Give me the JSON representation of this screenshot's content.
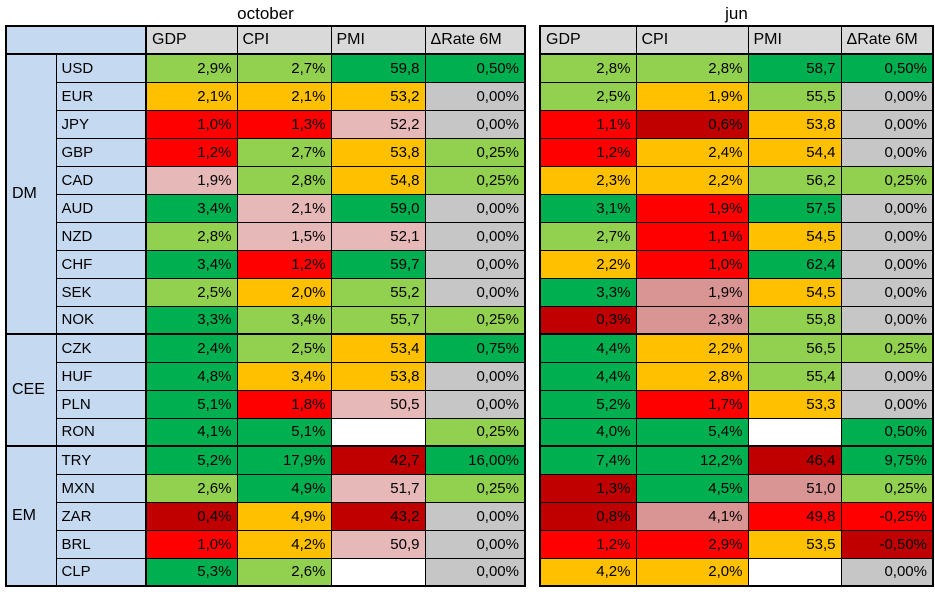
{
  "colors": {
    "dark_green": "#00B050",
    "light_green": "#92D050",
    "amber": "#FFC000",
    "red": "#FF0000",
    "dark_red": "#C00000",
    "pink": "#E6B8B7",
    "rose": "#D99594",
    "gray": "#C6C6C6",
    "header_gray": "#D9D9D9",
    "label_blue": "#C5D9F1",
    "blank": "#FFFFFF"
  },
  "tables": [
    {
      "title": "october",
      "has_row_labels": true,
      "columns": [
        "GDP",
        "CPI",
        "PMI",
        "ΔRate 6M"
      ],
      "groups": [
        {
          "label": "DM",
          "rows": [
            {
              "currency": "USD",
              "cells": [
                [
                  "2,9%",
                  "light_green"
                ],
                [
                  "2,7%",
                  "light_green"
                ],
                [
                  "59,8",
                  "dark_green"
                ],
                [
                  "0,50%",
                  "dark_green"
                ]
              ]
            },
            {
              "currency": "EUR",
              "cells": [
                [
                  "2,1%",
                  "amber"
                ],
                [
                  "2,1%",
                  "amber"
                ],
                [
                  "53,2",
                  "amber"
                ],
                [
                  "0,00%",
                  "gray"
                ]
              ]
            },
            {
              "currency": "JPY",
              "cells": [
                [
                  "1,0%",
                  "red"
                ],
                [
                  "1,3%",
                  "red"
                ],
                [
                  "52,2",
                  "pink"
                ],
                [
                  "0,00%",
                  "gray"
                ]
              ]
            },
            {
              "currency": "GBP",
              "cells": [
                [
                  "1,2%",
                  "red"
                ],
                [
                  "2,7%",
                  "light_green"
                ],
                [
                  "53,8",
                  "amber"
                ],
                [
                  "0,25%",
                  "light_green"
                ]
              ]
            },
            {
              "currency": "CAD",
              "cells": [
                [
                  "1,9%",
                  "pink"
                ],
                [
                  "2,8%",
                  "light_green"
                ],
                [
                  "54,8",
                  "amber"
                ],
                [
                  "0,25%",
                  "light_green"
                ]
              ]
            },
            {
              "currency": "AUD",
              "cells": [
                [
                  "3,4%",
                  "dark_green"
                ],
                [
                  "2,1%",
                  "pink"
                ],
                [
                  "59,0",
                  "dark_green"
                ],
                [
                  "0,00%",
                  "gray"
                ]
              ]
            },
            {
              "currency": "NZD",
              "cells": [
                [
                  "2,8%",
                  "light_green"
                ],
                [
                  "1,5%",
                  "pink"
                ],
                [
                  "52,1",
                  "pink"
                ],
                [
                  "0,00%",
                  "gray"
                ]
              ]
            },
            {
              "currency": "CHF",
              "cells": [
                [
                  "3,4%",
                  "dark_green"
                ],
                [
                  "1,2%",
                  "red"
                ],
                [
                  "59,7",
                  "dark_green"
                ],
                [
                  "0,00%",
                  "gray"
                ]
              ]
            },
            {
              "currency": "SEK",
              "cells": [
                [
                  "2,5%",
                  "light_green"
                ],
                [
                  "2,0%",
                  "amber"
                ],
                [
                  "55,2",
                  "light_green"
                ],
                [
                  "0,00%",
                  "gray"
                ]
              ]
            },
            {
              "currency": "NOK",
              "cells": [
                [
                  "3,3%",
                  "dark_green"
                ],
                [
                  "3,4%",
                  "light_green"
                ],
                [
                  "55,7",
                  "light_green"
                ],
                [
                  "0,25%",
                  "light_green"
                ]
              ]
            }
          ]
        },
        {
          "label": "CEE",
          "rows": [
            {
              "currency": "CZK",
              "cells": [
                [
                  "2,4%",
                  "dark_green"
                ],
                [
                  "2,5%",
                  "light_green"
                ],
                [
                  "53,4",
                  "amber"
                ],
                [
                  "0,75%",
                  "dark_green"
                ]
              ]
            },
            {
              "currency": "HUF",
              "cells": [
                [
                  "4,8%",
                  "dark_green"
                ],
                [
                  "3,4%",
                  "amber"
                ],
                [
                  "53,8",
                  "amber"
                ],
                [
                  "0,00%",
                  "gray"
                ]
              ]
            },
            {
              "currency": "PLN",
              "cells": [
                [
                  "5,1%",
                  "dark_green"
                ],
                [
                  "1,8%",
                  "red"
                ],
                [
                  "50,5",
                  "pink"
                ],
                [
                  "0,00%",
                  "gray"
                ]
              ]
            },
            {
              "currency": "RON",
              "cells": [
                [
                  "4,1%",
                  "dark_green"
                ],
                [
                  "5,1%",
                  "dark_green"
                ],
                [
                  "",
                  "blank"
                ],
                [
                  "0,25%",
                  "light_green"
                ]
              ]
            }
          ]
        },
        {
          "label": "EM",
          "rows": [
            {
              "currency": "TRY",
              "cells": [
                [
                  "5,2%",
                  "dark_green"
                ],
                [
                  "17,9%",
                  "dark_green"
                ],
                [
                  "42,7",
                  "dark_red"
                ],
                [
                  "16,00%",
                  "dark_green"
                ]
              ]
            },
            {
              "currency": "MXN",
              "cells": [
                [
                  "2,6%",
                  "light_green"
                ],
                [
                  "4,9%",
                  "dark_green"
                ],
                [
                  "51,7",
                  "pink"
                ],
                [
                  "0,25%",
                  "light_green"
                ]
              ]
            },
            {
              "currency": "ZAR",
              "cells": [
                [
                  "0,4%",
                  "dark_red"
                ],
                [
                  "4,9%",
                  "amber"
                ],
                [
                  "43,2",
                  "dark_red"
                ],
                [
                  "0,00%",
                  "gray"
                ]
              ]
            },
            {
              "currency": "BRL",
              "cells": [
                [
                  "1,0%",
                  "red"
                ],
                [
                  "4,2%",
                  "amber"
                ],
                [
                  "50,9",
                  "pink"
                ],
                [
                  "0,00%",
                  "gray"
                ]
              ]
            },
            {
              "currency": "CLP",
              "cells": [
                [
                  "5,3%",
                  "dark_green"
                ],
                [
                  "2,6%",
                  "light_green"
                ],
                [
                  "",
                  "blank"
                ],
                [
                  "0,00%",
                  "gray"
                ]
              ]
            }
          ]
        }
      ]
    },
    {
      "title": "jun",
      "has_row_labels": false,
      "columns": [
        "GDP",
        "CPI",
        "PMI",
        "ΔRate 6M"
      ],
      "groups": [
        {
          "label": "DM",
          "rows": [
            {
              "cells": [
                [
                  "2,8%",
                  "light_green"
                ],
                [
                  "2,8%",
                  "light_green"
                ],
                [
                  "58,7",
                  "dark_green"
                ],
                [
                  "0,50%",
                  "dark_green"
                ]
              ]
            },
            {
              "cells": [
                [
                  "2,5%",
                  "light_green"
                ],
                [
                  "1,9%",
                  "amber"
                ],
                [
                  "55,5",
                  "light_green"
                ],
                [
                  "0,00%",
                  "gray"
                ]
              ]
            },
            {
              "cells": [
                [
                  "1,1%",
                  "red"
                ],
                [
                  "0,6%",
                  "dark_red"
                ],
                [
                  "53,8",
                  "amber"
                ],
                [
                  "0,00%",
                  "gray"
                ]
              ]
            },
            {
              "cells": [
                [
                  "1,2%",
                  "red"
                ],
                [
                  "2,4%",
                  "amber"
                ],
                [
                  "54,4",
                  "amber"
                ],
                [
                  "0,00%",
                  "gray"
                ]
              ]
            },
            {
              "cells": [
                [
                  "2,3%",
                  "amber"
                ],
                [
                  "2,2%",
                  "amber"
                ],
                [
                  "56,2",
                  "light_green"
                ],
                [
                  "0,25%",
                  "light_green"
                ]
              ]
            },
            {
              "cells": [
                [
                  "3,1%",
                  "dark_green"
                ],
                [
                  "1,9%",
                  "red"
                ],
                [
                  "57,5",
                  "dark_green"
                ],
                [
                  "0,00%",
                  "gray"
                ]
              ]
            },
            {
              "cells": [
                [
                  "2,7%",
                  "light_green"
                ],
                [
                  "1,1%",
                  "red"
                ],
                [
                  "54,5",
                  "amber"
                ],
                [
                  "0,00%",
                  "gray"
                ]
              ]
            },
            {
              "cells": [
                [
                  "2,2%",
                  "amber"
                ],
                [
                  "1,0%",
                  "red"
                ],
                [
                  "62,4",
                  "dark_green"
                ],
                [
                  "0,00%",
                  "gray"
                ]
              ]
            },
            {
              "cells": [
                [
                  "3,3%",
                  "dark_green"
                ],
                [
                  "1,9%",
                  "rose"
                ],
                [
                  "54,5",
                  "amber"
                ],
                [
                  "0,00%",
                  "gray"
                ]
              ]
            },
            {
              "cells": [
                [
                  "0,3%",
                  "dark_red"
                ],
                [
                  "2,3%",
                  "rose"
                ],
                [
                  "55,8",
                  "light_green"
                ],
                [
                  "0,00%",
                  "gray"
                ]
              ]
            }
          ]
        },
        {
          "label": "CEE",
          "rows": [
            {
              "cells": [
                [
                  "4,4%",
                  "dark_green"
                ],
                [
                  "2,2%",
                  "amber"
                ],
                [
                  "56,5",
                  "light_green"
                ],
                [
                  "0,25%",
                  "light_green"
                ]
              ]
            },
            {
              "cells": [
                [
                  "4,4%",
                  "dark_green"
                ],
                [
                  "2,8%",
                  "amber"
                ],
                [
                  "55,4",
                  "light_green"
                ],
                [
                  "0,00%",
                  "gray"
                ]
              ]
            },
            {
              "cells": [
                [
                  "5,2%",
                  "dark_green"
                ],
                [
                  "1,7%",
                  "red"
                ],
                [
                  "53,3",
                  "amber"
                ],
                [
                  "0,00%",
                  "gray"
                ]
              ]
            },
            {
              "cells": [
                [
                  "4,0%",
                  "dark_green"
                ],
                [
                  "5,4%",
                  "dark_green"
                ],
                [
                  "",
                  "blank"
                ],
                [
                  "0,50%",
                  "dark_green"
                ]
              ]
            }
          ]
        },
        {
          "label": "EM",
          "rows": [
            {
              "cells": [
                [
                  "7,4%",
                  "dark_green"
                ],
                [
                  "12,2%",
                  "dark_green"
                ],
                [
                  "46,4",
                  "dark_red"
                ],
                [
                  "9,75%",
                  "dark_green"
                ]
              ]
            },
            {
              "cells": [
                [
                  "1,3%",
                  "dark_red"
                ],
                [
                  "4,5%",
                  "dark_green"
                ],
                [
                  "51,0",
                  "rose"
                ],
                [
                  "0,25%",
                  "light_green"
                ]
              ]
            },
            {
              "cells": [
                [
                  "0,8%",
                  "dark_red"
                ],
                [
                  "4,1%",
                  "rose"
                ],
                [
                  "49,8",
                  "red"
                ],
                [
                  "-0,25%",
                  "red"
                ]
              ]
            },
            {
              "cells": [
                [
                  "1,2%",
                  "red"
                ],
                [
                  "2,9%",
                  "red"
                ],
                [
                  "53,5",
                  "amber"
                ],
                [
                  "-0,50%",
                  "dark_red"
                ]
              ]
            },
            {
              "cells": [
                [
                  "4,2%",
                  "amber"
                ],
                [
                  "2,0%",
                  "amber"
                ],
                [
                  "",
                  "blank"
                ],
                [
                  "0,00%",
                  "gray"
                ]
              ]
            }
          ]
        }
      ]
    }
  ]
}
